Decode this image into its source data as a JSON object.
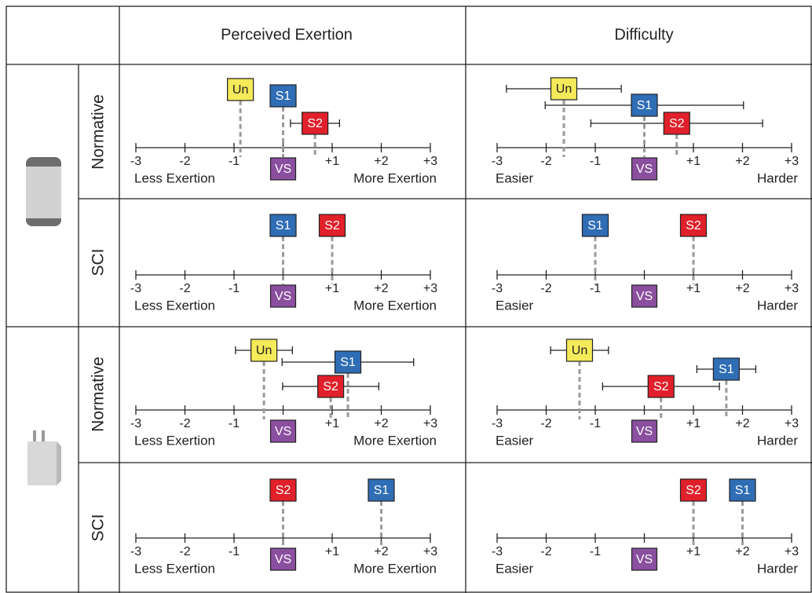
{
  "table": {
    "columns": [
      "Perceived Exertion",
      "Difficulty"
    ],
    "rows": [
      "Normative",
      "SCI",
      "Normative",
      "SCI"
    ]
  },
  "chart_data": [
    {
      "type": "scale",
      "xlim": [
        -3,
        3
      ],
      "xticks": [
        -3,
        -2,
        -1,
        {
          "value": 0,
          "label": "VS"
        },
        {
          "value": 1,
          "label": "+1"
        },
        {
          "value": 2,
          "label": "+2"
        },
        {
          "value": 3,
          "label": "+3"
        }
      ],
      "reference_color": "#8a4f9e",
      "axis_labels": [
        "Less Exertion",
        "More Exertion"
      ],
      "markers": [
        {
          "label": "Un",
          "value": -0.87,
          "error": 0.25,
          "color": "#f5ea5a"
        },
        {
          "label": "S1",
          "value": 0,
          "color": "#2f6db5"
        },
        {
          "label": "S2",
          "value": 0.65,
          "error": 0.5,
          "color": "#e0202a"
        }
      ]
    },
    {
      "type": "scale",
      "xlim": [
        -3,
        3
      ],
      "xticks": [
        -3,
        -2,
        -1,
        {
          "value": 0,
          "label": "VS"
        },
        {
          "value": 1,
          "label": "+1"
        },
        {
          "value": 2,
          "label": "+2"
        },
        {
          "value": 3,
          "label": "+3"
        }
      ],
      "reference_color": "#8a4f9e",
      "axis_labels": [
        "Easier",
        "Harder"
      ],
      "markers": [
        {
          "label": "Un",
          "value": -1.64,
          "error": 1.17,
          "color": "#f5ea5a"
        },
        {
          "label": "S1",
          "value": 0,
          "error": 2.02,
          "color": "#2f6db5"
        },
        {
          "label": "S2",
          "value": 0.66,
          "error": 1.75,
          "color": "#e0202a"
        }
      ]
    },
    {
      "type": "scale",
      "xlim": [
        -3,
        3
      ],
      "xticks": [
        -3,
        -2,
        -1,
        {
          "value": 0,
          "label": "VS"
        },
        {
          "value": 1,
          "label": "+1"
        },
        {
          "value": 2,
          "label": "+2"
        },
        {
          "value": 3,
          "label": "+3"
        }
      ],
      "reference_color": "#8a4f9e",
      "axis_labels": [
        "Less Exertion",
        "More Exertion"
      ],
      "markers": [
        {
          "label": "S1",
          "value": 0,
          "color": "#2f6db5"
        },
        {
          "label": "S2",
          "value": 1,
          "color": "#e0202a"
        }
      ]
    },
    {
      "type": "scale",
      "xlim": [
        -3,
        3
      ],
      "xticks": [
        -3,
        -2,
        -1,
        {
          "value": 0,
          "label": "VS"
        },
        {
          "value": 1,
          "label": "+1"
        },
        {
          "value": 2,
          "label": "+2"
        },
        {
          "value": 3,
          "label": "+3"
        }
      ],
      "reference_color": "#8a4f9e",
      "axis_labels": [
        "Easier",
        "Harder"
      ],
      "markers": [
        {
          "label": "S1",
          "value": -1,
          "color": "#2f6db5"
        },
        {
          "label": "S2",
          "value": 1,
          "color": "#e0202a"
        }
      ]
    },
    {
      "type": "scale",
      "xlim": [
        -3,
        3
      ],
      "xticks": [
        -3,
        -2,
        -1,
        {
          "value": 0,
          "label": "VS"
        },
        {
          "value": 1,
          "label": "+1"
        },
        {
          "value": 2,
          "label": "+2"
        },
        {
          "value": 3,
          "label": "+3"
        }
      ],
      "reference_color": "#8a4f9e",
      "axis_labels": [
        "Less Exertion",
        "More Exertion"
      ],
      "markers": [
        {
          "label": "Un",
          "value": -0.39,
          "error": 0.58,
          "color": "#f5ea5a"
        },
        {
          "label": "S1",
          "value": 1.32,
          "error": 1.34,
          "color": "#2f6db5"
        },
        {
          "label": "S2",
          "value": 0.97,
          "error": 0.98,
          "color": "#e0202a"
        }
      ]
    },
    {
      "type": "scale",
      "xlim": [
        -3,
        3
      ],
      "xticks": [
        -3,
        -2,
        -1,
        {
          "value": 0,
          "label": "VS"
        },
        {
          "value": 1,
          "label": "+1"
        },
        {
          "value": 2,
          "label": "+2"
        },
        {
          "value": 3,
          "label": "+3"
        }
      ],
      "reference_color": "#8a4f9e",
      "axis_labels": [
        "Easier",
        "Harder"
      ],
      "markers": [
        {
          "label": "Un",
          "value": -1.32,
          "error": 0.59,
          "color": "#f5ea5a"
        },
        {
          "label": "S1",
          "value": 1.67,
          "error": 0.6,
          "color": "#2f6db5"
        },
        {
          "label": "S2",
          "value": 0.34,
          "error": 1.19,
          "color": "#e0202a"
        }
      ]
    },
    {
      "type": "scale",
      "xlim": [
        -3,
        3
      ],
      "xticks": [
        -3,
        -2,
        -1,
        {
          "value": 0,
          "label": "VS"
        },
        {
          "value": 1,
          "label": "+1"
        },
        {
          "value": 2,
          "label": "+2"
        },
        {
          "value": 3,
          "label": "+3"
        }
      ],
      "reference_color": "#8a4f9e",
      "axis_labels": [
        "Less Exertion",
        "More Exertion"
      ],
      "markers": [
        {
          "label": "S2",
          "value": 0,
          "color": "#e0202a"
        },
        {
          "label": "S1",
          "value": 2,
          "color": "#2f6db5"
        }
      ]
    },
    {
      "type": "scale",
      "xlim": [
        -3,
        3
      ],
      "xticks": [
        -3,
        -2,
        -1,
        {
          "value": 0,
          "label": "VS"
        },
        {
          "value": 1,
          "label": "+1"
        },
        {
          "value": 2,
          "label": "+2"
        },
        {
          "value": 3,
          "label": "+3"
        }
      ],
      "reference_color": "#8a4f9e",
      "axis_labels": [
        "Easier",
        "Harder"
      ],
      "markers": [
        {
          "label": "S2",
          "value": 1,
          "color": "#e0202a"
        },
        {
          "label": "S1",
          "value": 2,
          "color": "#2f6db5"
        }
      ]
    }
  ]
}
